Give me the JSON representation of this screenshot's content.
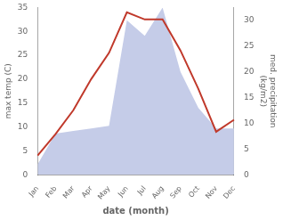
{
  "chart_data": {
    "type": "line",
    "categories": [
      "Jan",
      "Feb",
      "Mar",
      "Apr",
      "May",
      "Jun",
      "Jul",
      "Aug",
      "Sep",
      "Oct",
      "Nov",
      "Dec"
    ],
    "series": [
      {
        "type": "area",
        "color": "#c5cce8",
        "axis": "y2",
        "values": [
          2.0,
          8.0,
          8.5,
          9.0,
          9.5,
          30.0,
          27.0,
          32.5,
          20.0,
          13.0,
          9.0,
          9.0
        ]
      },
      {
        "type": "line",
        "color": "#c0392b",
        "values": [
          4.0,
          8.5,
          13.5,
          20.0,
          25.5,
          34.0,
          32.5,
          32.5,
          26.0,
          18.0,
          9.0,
          11.5
        ]
      }
    ],
    "xlabel": "date (month)",
    "ylabel": "max temp (C)",
    "y2label": "med. precipitation\n(kg/m2)",
    "ylim": [
      0,
      35
    ],
    "yticks": [
      0,
      5,
      10,
      15,
      20,
      25,
      30,
      35
    ],
    "y2lim": [
      0,
      32.5
    ],
    "y2ticks": [
      0,
      5,
      10,
      15,
      20,
      25,
      30
    ],
    "grid": false
  }
}
